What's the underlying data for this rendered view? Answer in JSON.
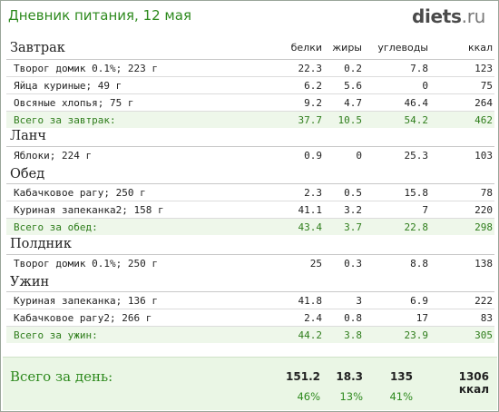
{
  "header": {
    "title": "Дневник питания, 12 мая",
    "logo_main": "diets",
    "logo_suffix": ".ru"
  },
  "columns": {
    "protein": "белки",
    "fat": "жиры",
    "carbs": "углеводы",
    "kcal": "ккал"
  },
  "meals": [
    {
      "title": "Завтрак",
      "items": [
        {
          "name": "Творог домик 0.1%; 223 г",
          "protein": "22.3",
          "fat": "0.2",
          "carbs": "7.8",
          "kcal": "123"
        },
        {
          "name": "Яйца куриные; 49 г",
          "protein": "6.2",
          "fat": "5.6",
          "carbs": "0",
          "kcal": "75"
        },
        {
          "name": "Овсяные хлопья; 75 г",
          "protein": "9.2",
          "fat": "4.7",
          "carbs": "46.4",
          "kcal": "264"
        }
      ],
      "total": {
        "name": "Всего за завтрак:",
        "protein": "37.7",
        "fat": "10.5",
        "carbs": "54.2",
        "kcal": "462"
      }
    },
    {
      "title": "Ланч",
      "items": [
        {
          "name": "Яблоки; 224 г",
          "protein": "0.9",
          "fat": "0",
          "carbs": "25.3",
          "kcal": "103"
        }
      ]
    },
    {
      "title": "Обед",
      "items": [
        {
          "name": "Кабачковое рагу; 250 г",
          "protein": "2.3",
          "fat": "0.5",
          "carbs": "15.8",
          "kcal": "78"
        },
        {
          "name": "Куриная запеканка2; 158 г",
          "protein": "41.1",
          "fat": "3.2",
          "carbs": "7",
          "kcal": "220"
        }
      ],
      "total": {
        "name": "Всего за обед:",
        "protein": "43.4",
        "fat": "3.7",
        "carbs": "22.8",
        "kcal": "298"
      }
    },
    {
      "title": "Полдник",
      "items": [
        {
          "name": "Творог домик 0.1%; 250 г",
          "protein": "25",
          "fat": "0.3",
          "carbs": "8.8",
          "kcal": "138"
        }
      ]
    },
    {
      "title": "Ужин",
      "items": [
        {
          "name": "Куриная запеканка; 136 г",
          "protein": "41.8",
          "fat": "3",
          "carbs": "6.9",
          "kcal": "222"
        },
        {
          "name": "Кабачковое рагу2; 266 г",
          "protein": "2.4",
          "fat": "0.8",
          "carbs": "17",
          "kcal": "83"
        }
      ],
      "total": {
        "name": "Всего за ужин:",
        "protein": "44.2",
        "fat": "3.8",
        "carbs": "23.9",
        "kcal": "305"
      }
    }
  ],
  "day_total": {
    "label": "Всего за день:",
    "protein": "151.2",
    "fat": "18.3",
    "carbs": "135",
    "kcal": "1306 ккал",
    "protein_pct": "46%",
    "fat_pct": "13%",
    "carbs_pct": "41%"
  },
  "colors": {
    "accent_green": "#2e8a1e",
    "total_bg": "#eef7ea"
  }
}
